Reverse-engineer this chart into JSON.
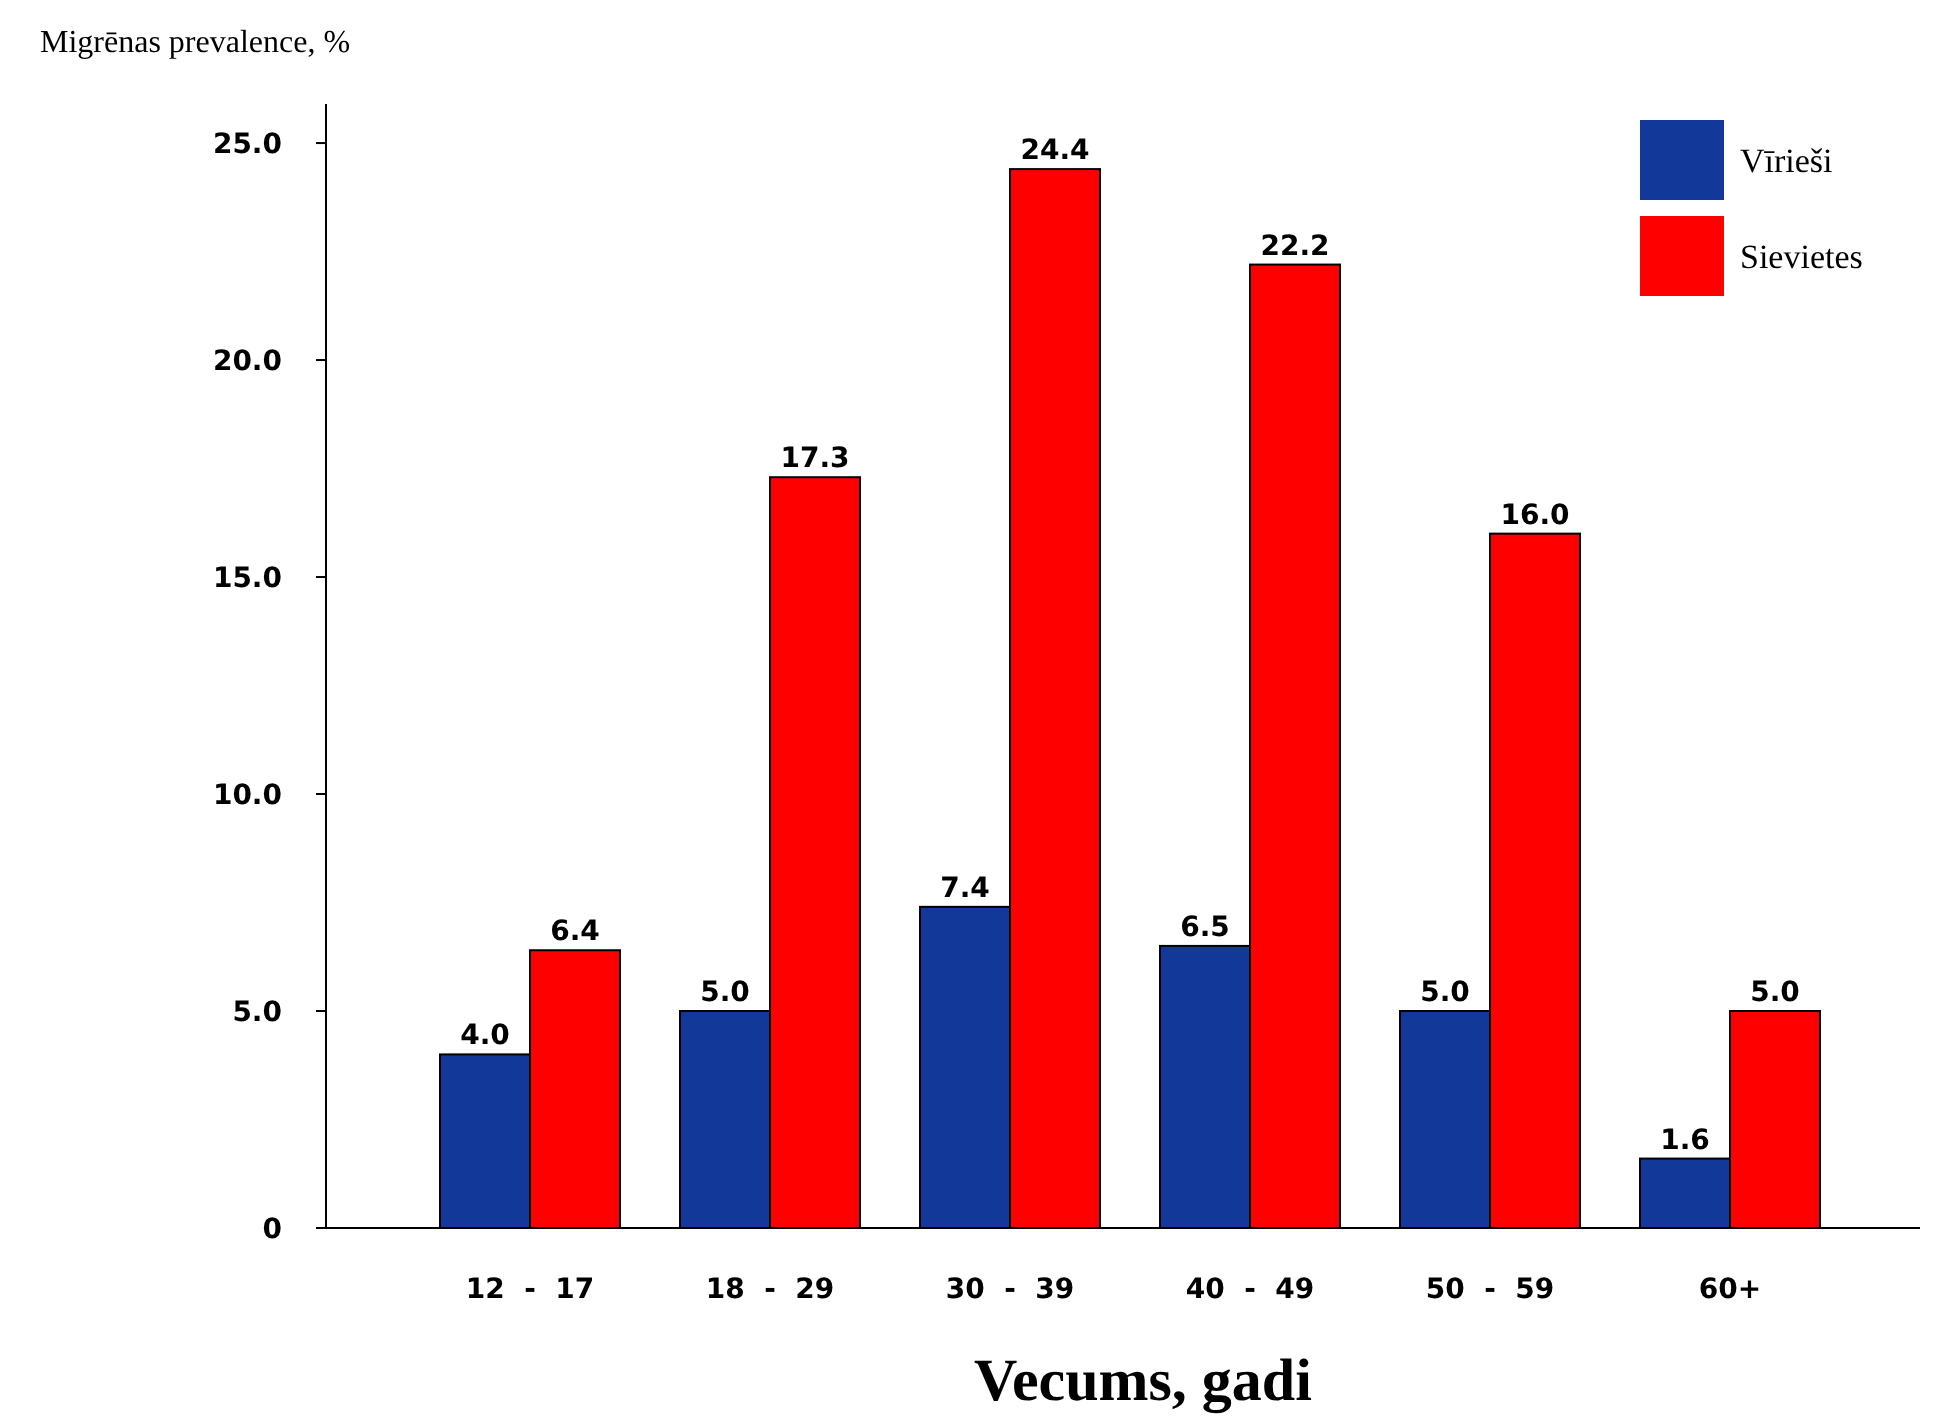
{
  "chart_data": {
    "type": "bar",
    "ylabel": "Migrēnas prevalence, %",
    "xlabel": "Vecums, gadi",
    "categories": [
      "12  -  17",
      "18  -  29",
      "30  -  39",
      "40  -  49",
      "50  -  59",
      "60+"
    ],
    "series": [
      {
        "name": "Vīrieši",
        "color": "#12399a",
        "values": [
          4.0,
          5.0,
          7.4,
          6.5,
          5.0,
          1.6
        ],
        "value_labels": [
          "4.0",
          "5.0",
          "7.4",
          "6.5",
          "5.0",
          "1.6"
        ]
      },
      {
        "name": "Sievietes",
        "color": "#ff0000",
        "values": [
          6.4,
          17.3,
          24.4,
          22.2,
          16.0,
          5.0
        ],
        "value_labels": [
          "6.4",
          "17.3",
          "24.4",
          "22.2",
          "16.0",
          "5.0"
        ]
      }
    ],
    "ylim": [
      0,
      25.9
    ],
    "yticks": [
      0,
      {
        "value": 5,
        "label": "5.0"
      },
      {
        "value": 10,
        "label": "10.0"
      },
      {
        "value": 15,
        "label": "15.0"
      },
      {
        "value": 20,
        "label": "20.0"
      },
      {
        "value": 25,
        "label": "25.0"
      }
    ],
    "legend": "top right",
    "grid": false
  }
}
